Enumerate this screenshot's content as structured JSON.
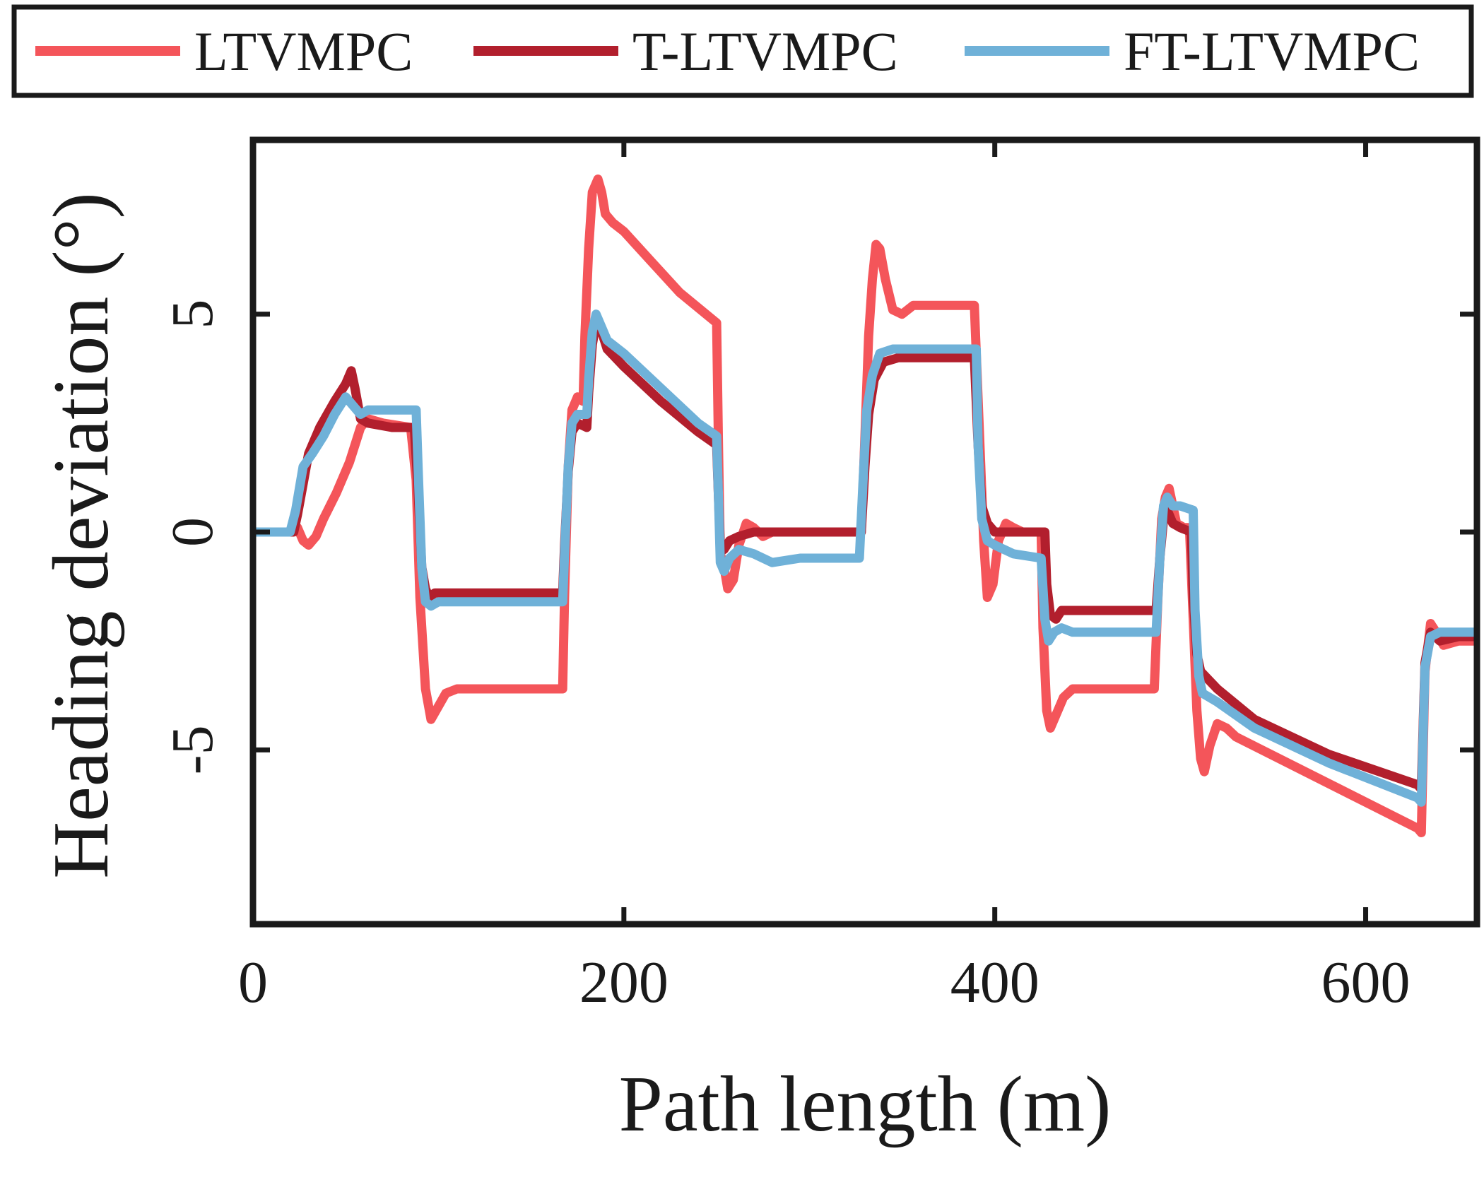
{
  "chart_data": {
    "type": "line",
    "title": "",
    "xlabel": "Path length (m)",
    "ylabel": "Heading deviation (°)",
    "xlim": [
      0,
      660
    ],
    "ylim": [
      -9,
      9
    ],
    "xticks": [
      0,
      200,
      400,
      600
    ],
    "xtick_labels": [
      "0",
      "200",
      "400",
      "600"
    ],
    "yticks": [
      -5,
      0,
      5
    ],
    "ytick_labels": [
      "-5",
      "0",
      "5"
    ],
    "grid": false,
    "legend_position": "top",
    "series": [
      {
        "name": "LTVMPC",
        "color": "#f4555a",
        "points": [
          [
            0,
            0
          ],
          [
            20,
            0
          ],
          [
            24,
            0.1
          ],
          [
            27,
            -0.2
          ],
          [
            30,
            -0.3
          ],
          [
            34,
            -0.1
          ],
          [
            38,
            0.3
          ],
          [
            45,
            0.9
          ],
          [
            52,
            1.6
          ],
          [
            58,
            2.4
          ],
          [
            62,
            2.6
          ],
          [
            70,
            2.5
          ],
          [
            85,
            2.4
          ],
          [
            88,
            1.2
          ],
          [
            90,
            -1.5
          ],
          [
            93,
            -3.6
          ],
          [
            96,
            -4.3
          ],
          [
            100,
            -4.0
          ],
          [
            104,
            -3.7
          ],
          [
            110,
            -3.6
          ],
          [
            130,
            -3.6
          ],
          [
            167,
            -3.6
          ],
          [
            168,
            -1.5
          ],
          [
            170,
            1.5
          ],
          [
            172,
            2.8
          ],
          [
            175,
            3.1
          ],
          [
            178,
            3.0
          ],
          [
            179,
            4.5
          ],
          [
            181,
            6.5
          ],
          [
            183,
            7.8
          ],
          [
            186,
            8.1
          ],
          [
            188,
            7.8
          ],
          [
            190,
            7.3
          ],
          [
            194,
            7.1
          ],
          [
            200,
            6.9
          ],
          [
            215,
            6.2
          ],
          [
            230,
            5.5
          ],
          [
            250,
            4.8
          ],
          [
            251,
            2.0
          ],
          [
            252,
            -0.5
          ],
          [
            254,
            -0.8
          ],
          [
            256,
            -1.3
          ],
          [
            259,
            -1.1
          ],
          [
            262,
            -0.3
          ],
          [
            266,
            0.2
          ],
          [
            270,
            0.1
          ],
          [
            275,
            -0.1
          ],
          [
            280,
            0
          ],
          [
            300,
            0
          ],
          [
            328,
            0
          ],
          [
            330,
            2.2
          ],
          [
            332,
            4.5
          ],
          [
            334,
            5.8
          ],
          [
            336,
            6.6
          ],
          [
            338,
            6.5
          ],
          [
            341,
            5.8
          ],
          [
            345,
            5.1
          ],
          [
            350,
            5.0
          ],
          [
            356,
            5.2
          ],
          [
            362,
            5.2
          ],
          [
            380,
            5.2
          ],
          [
            389,
            5.2
          ],
          [
            392,
            2.0
          ],
          [
            394,
            -0.2
          ],
          [
            396,
            -1.5
          ],
          [
            399,
            -1.2
          ],
          [
            402,
            -0.2
          ],
          [
            406,
            0.2
          ],
          [
            410,
            0.1
          ],
          [
            415,
            0
          ],
          [
            425,
            0
          ],
          [
            426,
            -2.2
          ],
          [
            428,
            -4.1
          ],
          [
            430,
            -4.5
          ],
          [
            433,
            -4.2
          ],
          [
            437,
            -3.8
          ],
          [
            442,
            -3.6
          ],
          [
            460,
            -3.6
          ],
          [
            486,
            -3.6
          ],
          [
            488,
            -1.5
          ],
          [
            490,
            0.3
          ],
          [
            492,
            0.8
          ],
          [
            494,
            1.0
          ],
          [
            496,
            0.6
          ],
          [
            498,
            0.2
          ],
          [
            502,
            0.1
          ],
          [
            505,
            0.1
          ],
          [
            507,
            -2.0
          ],
          [
            509,
            -4.1
          ],
          [
            511,
            -5.2
          ],
          [
            513,
            -5.5
          ],
          [
            516,
            -4.9
          ],
          [
            520,
            -4.4
          ],
          [
            525,
            -4.5
          ],
          [
            530,
            -4.7
          ],
          [
            628,
            -6.8
          ],
          [
            630,
            -6.9
          ],
          [
            632,
            -3.2
          ],
          [
            635,
            -2.1
          ],
          [
            638,
            -2.3
          ],
          [
            642,
            -2.6
          ],
          [
            650,
            -2.5
          ],
          [
            660,
            -2.5
          ]
        ]
      },
      {
        "name": "T-LTVMPC",
        "color": "#b21f2d",
        "points": [
          [
            0,
            0
          ],
          [
            22,
            0
          ],
          [
            24,
            0.4
          ],
          [
            27,
            1.1
          ],
          [
            30,
            1.8
          ],
          [
            36,
            2.4
          ],
          [
            44,
            3.0
          ],
          [
            50,
            3.4
          ],
          [
            53,
            3.7
          ],
          [
            55,
            3.3
          ],
          [
            58,
            2.6
          ],
          [
            62,
            2.5
          ],
          [
            75,
            2.4
          ],
          [
            87,
            2.4
          ],
          [
            89,
            1.0
          ],
          [
            91,
            -0.8
          ],
          [
            93,
            -1.3
          ],
          [
            95,
            -1.5
          ],
          [
            98,
            -1.4
          ],
          [
            103,
            -1.4
          ],
          [
            130,
            -1.4
          ],
          [
            167,
            -1.4
          ],
          [
            168,
            -0.3
          ],
          [
            170,
            1.4
          ],
          [
            172,
            2.3
          ],
          [
            175,
            2.5
          ],
          [
            180,
            2.4
          ],
          [
            181,
            3.2
          ],
          [
            183,
            4.3
          ],
          [
            185,
            4.8
          ],
          [
            188,
            4.6
          ],
          [
            191,
            4.2
          ],
          [
            200,
            3.8
          ],
          [
            220,
            3.0
          ],
          [
            240,
            2.3
          ],
          [
            250,
            2.0
          ],
          [
            251,
            0.8
          ],
          [
            252,
            -0.3
          ],
          [
            254,
            -0.4
          ],
          [
            257,
            -0.2
          ],
          [
            262,
            -0.1
          ],
          [
            270,
            0
          ],
          [
            300,
            0
          ],
          [
            328,
            0
          ],
          [
            330,
            1.5
          ],
          [
            332,
            2.7
          ],
          [
            335,
            3.5
          ],
          [
            340,
            3.9
          ],
          [
            348,
            4.0
          ],
          [
            365,
            4.0
          ],
          [
            389,
            4.0
          ],
          [
            391,
            2.0
          ],
          [
            393,
            0.6
          ],
          [
            396,
            0.2
          ],
          [
            400,
            0
          ],
          [
            410,
            0
          ],
          [
            427,
            0
          ],
          [
            428,
            -1.2
          ],
          [
            430,
            -1.9
          ],
          [
            433,
            -2.0
          ],
          [
            436,
            -1.8
          ],
          [
            442,
            -1.8
          ],
          [
            465,
            -1.8
          ],
          [
            487,
            -1.8
          ],
          [
            489,
            -0.6
          ],
          [
            491,
            0.3
          ],
          [
            493,
            0.5
          ],
          [
            496,
            0.2
          ],
          [
            500,
            0.1
          ],
          [
            506,
            0
          ],
          [
            507,
            -1.5
          ],
          [
            509,
            -2.8
          ],
          [
            511,
            -3.2
          ],
          [
            520,
            -3.6
          ],
          [
            540,
            -4.3
          ],
          [
            580,
            -5.1
          ],
          [
            628,
            -5.8
          ],
          [
            630,
            -5.9
          ],
          [
            632,
            -3.0
          ],
          [
            635,
            -2.3
          ],
          [
            640,
            -2.5
          ],
          [
            650,
            -2.4
          ],
          [
            660,
            -2.4
          ]
        ]
      },
      {
        "name": "FT-LTVMPC",
        "color": "#6fb1d8",
        "points": [
          [
            0,
            0
          ],
          [
            20,
            0
          ],
          [
            23,
            0.5
          ],
          [
            27,
            1.5
          ],
          [
            32,
            1.8
          ],
          [
            38,
            2.2
          ],
          [
            44,
            2.7
          ],
          [
            50,
            3.1
          ],
          [
            54,
            2.9
          ],
          [
            58,
            2.7
          ],
          [
            62,
            2.8
          ],
          [
            70,
            2.8
          ],
          [
            88,
            2.8
          ],
          [
            89,
            1.5
          ],
          [
            91,
            -0.8
          ],
          [
            93,
            -1.6
          ],
          [
            96,
            -1.7
          ],
          [
            100,
            -1.6
          ],
          [
            110,
            -1.6
          ],
          [
            130,
            -1.6
          ],
          [
            167,
            -1.6
          ],
          [
            168,
            -0.5
          ],
          [
            170,
            1.5
          ],
          [
            172,
            2.5
          ],
          [
            175,
            2.7
          ],
          [
            180,
            2.7
          ],
          [
            181,
            3.5
          ],
          [
            183,
            4.6
          ],
          [
            185,
            5.0
          ],
          [
            188,
            4.7
          ],
          [
            191,
            4.4
          ],
          [
            200,
            4.1
          ],
          [
            220,
            3.3
          ],
          [
            240,
            2.5
          ],
          [
            250,
            2.2
          ],
          [
            251,
            0.8
          ],
          [
            252,
            -0.7
          ],
          [
            254,
            -0.9
          ],
          [
            257,
            -0.6
          ],
          [
            262,
            -0.4
          ],
          [
            270,
            -0.5
          ],
          [
            280,
            -0.7
          ],
          [
            295,
            -0.6
          ],
          [
            327,
            -0.6
          ],
          [
            329,
            1.2
          ],
          [
            331,
            2.8
          ],
          [
            334,
            3.6
          ],
          [
            338,
            4.1
          ],
          [
            345,
            4.2
          ],
          [
            360,
            4.2
          ],
          [
            390,
            4.2
          ],
          [
            391,
            2.0
          ],
          [
            393,
            0.3
          ],
          [
            396,
            -0.2
          ],
          [
            400,
            -0.3
          ],
          [
            410,
            -0.5
          ],
          [
            425,
            -0.6
          ],
          [
            427,
            -2.0
          ],
          [
            429,
            -2.5
          ],
          [
            432,
            -2.3
          ],
          [
            436,
            -2.2
          ],
          [
            442,
            -2.3
          ],
          [
            465,
            -2.3
          ],
          [
            487,
            -2.3
          ],
          [
            489,
            -0.6
          ],
          [
            491,
            0.6
          ],
          [
            493,
            0.8
          ],
          [
            496,
            0.6
          ],
          [
            500,
            0.6
          ],
          [
            507,
            0.5
          ],
          [
            508,
            -1.8
          ],
          [
            510,
            -3.3
          ],
          [
            512,
            -3.7
          ],
          [
            520,
            -3.9
          ],
          [
            540,
            -4.5
          ],
          [
            580,
            -5.3
          ],
          [
            628,
            -6.1
          ],
          [
            630,
            -6.2
          ],
          [
            632,
            -3.1
          ],
          [
            635,
            -2.4
          ],
          [
            640,
            -2.3
          ],
          [
            650,
            -2.3
          ],
          [
            660,
            -2.3
          ]
        ]
      }
    ]
  }
}
